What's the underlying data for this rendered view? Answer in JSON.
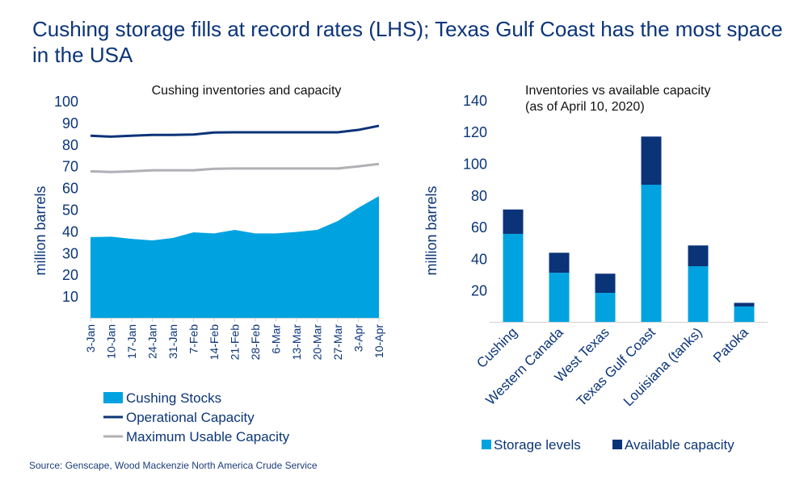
{
  "title": "Cushing storage fills at record rates (LHS); Texas Gulf Coast has the most space in the USA",
  "source": "Source: Genscape, Wood Mackenzie North America Crude Service",
  "colors": {
    "navy": "#0a3378",
    "blue": "#00a3e0",
    "gray": "#b0b0b5",
    "text": "#0b3578"
  },
  "chart_data": [
    {
      "type": "area",
      "title": "Cushing inventories and capacity",
      "ylabel": "million barrels",
      "xlabel": "",
      "ylim": [
        0,
        100
      ],
      "yticks": [
        "10",
        "20",
        "30",
        "40",
        "50",
        "60",
        "70",
        "80",
        "90",
        "100"
      ],
      "categories": [
        "3-Jan",
        "10-Jan",
        "17-Jan",
        "24-Jan",
        "31-Jan",
        "7-Feb",
        "14-Feb",
        "21-Feb",
        "28-Feb",
        "6-Mar",
        "13-Mar",
        "20-Mar",
        "27-Mar",
        "3-Apr",
        "10-Apr"
      ],
      "legend_position": "bottom",
      "series": [
        {
          "name": "Cushing Stocks",
          "kind": "area",
          "color": "#00a3e0",
          "values": [
            37.2,
            37.4,
            36.4,
            35.7,
            36.8,
            39.4,
            38.9,
            40.5,
            38.9,
            38.9,
            39.6,
            40.5,
            44.6,
            50.7,
            56.1
          ]
        },
        {
          "name": "Operational Capacity",
          "kind": "line",
          "color": "#0a3378",
          "values": [
            83.9,
            83.5,
            83.9,
            84.3,
            84.3,
            84.5,
            85.4,
            85.5,
            85.5,
            85.5,
            85.5,
            85.5,
            85.5,
            86.6,
            88.5
          ]
        },
        {
          "name": "Maximum Usable Capacity",
          "kind": "line",
          "color": "#b0b0b5",
          "values": [
            67.5,
            67.2,
            67.5,
            68.0,
            68.0,
            68.0,
            68.7,
            68.8,
            68.8,
            68.8,
            68.8,
            68.8,
            68.8,
            69.8,
            70.9
          ]
        }
      ]
    },
    {
      "type": "bar",
      "stacked": true,
      "title": "Inventories vs available capacity",
      "subtitle": "(as of April 10, 2020)",
      "ylabel": "million barrels",
      "ylim": [
        0,
        140
      ],
      "yticks": [
        "20",
        "40",
        "60",
        "80",
        "100",
        "120",
        "140"
      ],
      "categories": [
        "Cushing",
        "Western Canada",
        "West Texas",
        "Texas Gulf Coast",
        "Louisiana (tanks)",
        "Patoka"
      ],
      "legend_position": "bottom",
      "series": [
        {
          "name": "Storage levels",
          "color": "#00a3e0",
          "values": [
            55.5,
            31.0,
            18.3,
            86.5,
            35.1,
            9.7
          ]
        },
        {
          "name": "Available capacity",
          "color": "#0a3378",
          "values": [
            15.4,
            12.6,
            12.1,
            30.4,
            13.1,
            2.3
          ]
        }
      ]
    }
  ]
}
